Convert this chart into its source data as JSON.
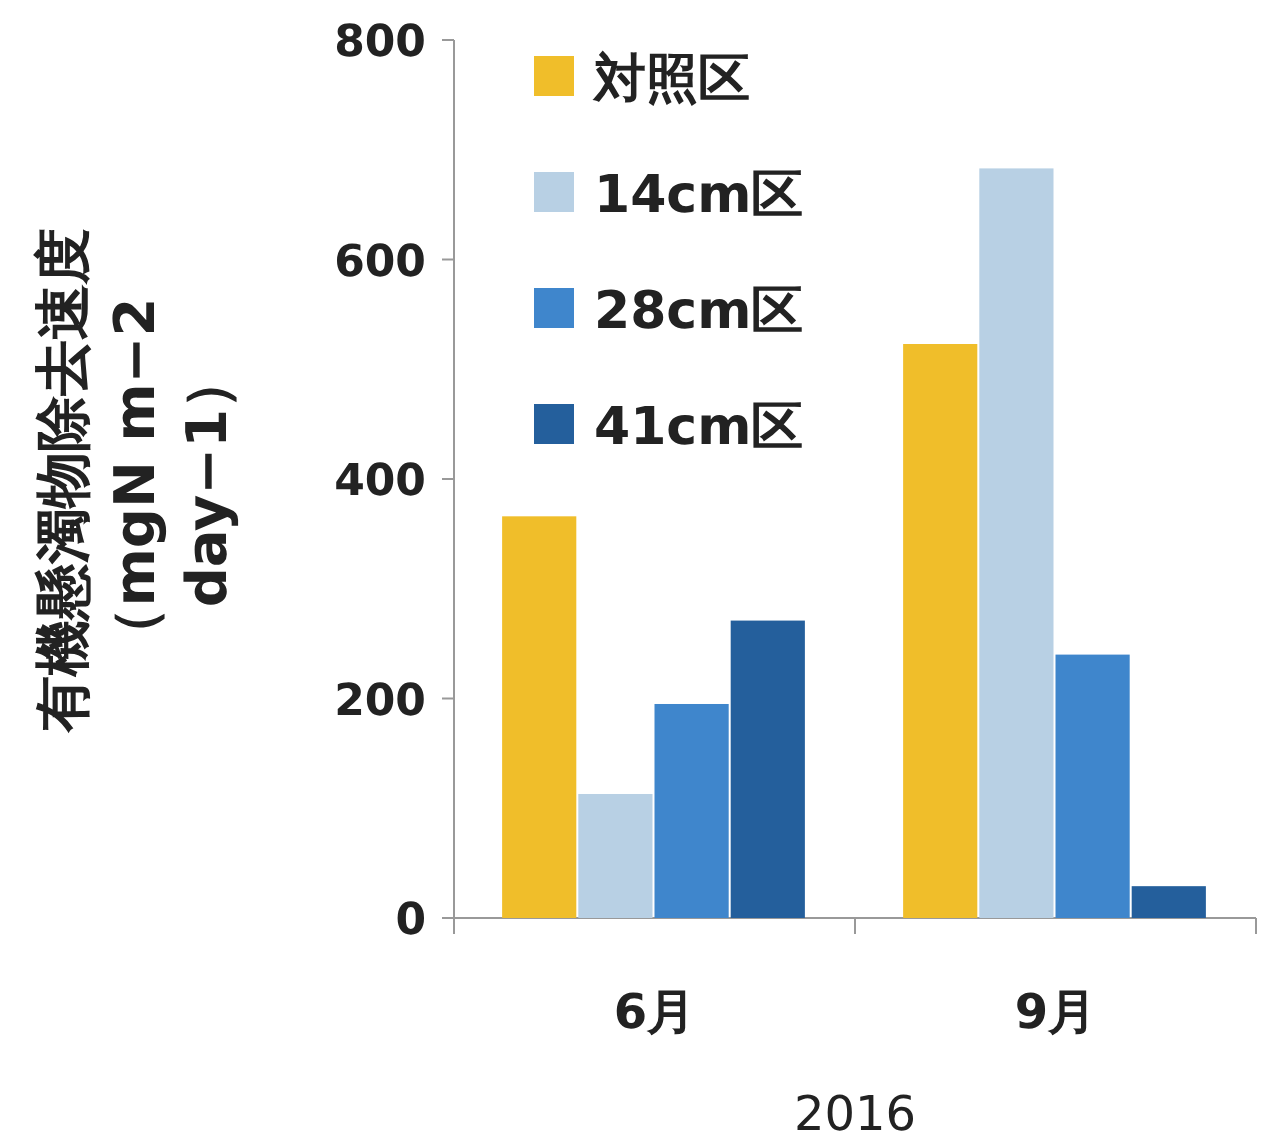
{
  "chart_data": {
    "type": "bar",
    "categories": [
      "6月",
      "9月"
    ],
    "xlabel": "2016",
    "ylabel": "有機懸濁物除去速度（mgN m−2 day−1）",
    "ylim": [
      0,
      800
    ],
    "yticks": [
      0,
      200,
      400,
      600,
      800
    ],
    "legend": "top left",
    "series": [
      {
        "name": "対照区",
        "color": "#f0be2a",
        "values": [
          366,
          523
        ]
      },
      {
        "name": "14cm区",
        "color": "#b8d0e4",
        "values": [
          113,
          683
        ]
      },
      {
        "name": "28cm区",
        "color": "#3f86cc",
        "values": [
          195,
          240
        ]
      },
      {
        "name": "41cm区",
        "color": "#245f9c",
        "values": [
          271,
          29
        ]
      }
    ]
  }
}
